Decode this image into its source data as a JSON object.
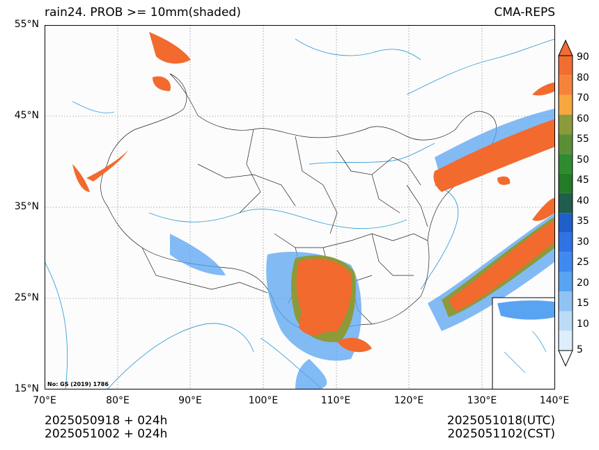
{
  "header": {
    "title_left": "rain24. PROB >= 10mm(shaded)",
    "title_right": "CMA-REPS"
  },
  "axes": {
    "lat_labels": [
      "55°N",
      "45°N",
      "35°N",
      "25°N",
      "15°N"
    ],
    "lon_labels": [
      "70°E",
      "80°E",
      "90°E",
      "100°E",
      "110°E",
      "120°E",
      "130°E",
      "140°E"
    ]
  },
  "map": {
    "note": "No: GS (2019) 1786",
    "colors": {
      "ocean": "#fcfcfc",
      "border": "#222222",
      "river": "#3aa0d8",
      "prob_high": "#f26a2e"
    }
  },
  "colorbar": {
    "levels": [
      "90",
      "80",
      "70",
      "60",
      "55",
      "50",
      "45",
      "40",
      "35",
      "30",
      "25",
      "20",
      "15",
      "10",
      "5"
    ],
    "colors": [
      "#f26d32",
      "#f7833b",
      "#f8a63e",
      "#8c9a3a",
      "#5a8f36",
      "#2f8a30",
      "#237a27",
      "#1f5e4c",
      "#1f5fc9",
      "#2f73e6",
      "#3f8af0",
      "#59a4f2",
      "#8fc3f4",
      "#bcdcf6",
      "#ddeefa"
    ]
  },
  "footer": {
    "init_line1": "2025050918  +  024h",
    "init_line2": "2025051002  +  024h",
    "valid_line1": "2025051018(UTC)",
    "valid_line2": "2025051102(CST)"
  }
}
